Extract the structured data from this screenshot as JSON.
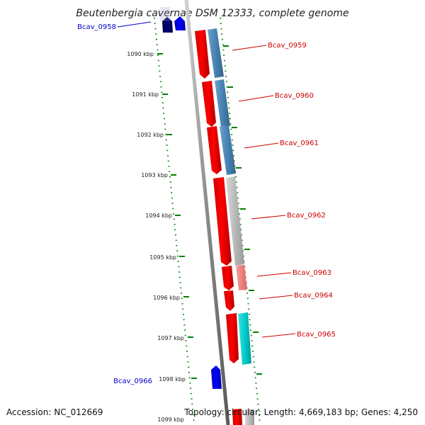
{
  "title": "Beutenbergia cavernae DSM 12333, complete genome",
  "footer": {
    "accession": "Accession: NC_012669",
    "topology": "Topology: circular; Length: 4,669,183 bp; Genes: 4,250"
  },
  "colors": {
    "forward_gene": "#ff0000",
    "reverse_gene": "#0000ff",
    "dark_reverse_gene": "#000066",
    "steelblue_feature": "#4682b4",
    "gray_feature": "#b0b0b0",
    "salmon_feature": "#f08080",
    "cyan_feature": "#00cccc",
    "forward_label": "#cc0000",
    "reverse_label": "#0000cc",
    "tick": "#008000",
    "backbone": "#808080"
  },
  "scale_labels": [
    "1090 kbp",
    "1091 kbp",
    "1092 kbp",
    "1093 kbp",
    "1094 kbp",
    "1095 kbp",
    "1096 kbp",
    "1097 kbp",
    "1098 kbp",
    "1099 kbp"
  ],
  "forward_genes": [
    "Bcav_0959",
    "Bcav_0960",
    "Bcav_0961",
    "Bcav_0962",
    "Bcav_0963",
    "Bcav_0964",
    "Bcav_0965"
  ],
  "reverse_genes": [
    "Bcav_0958",
    "Bcav_0966"
  ]
}
